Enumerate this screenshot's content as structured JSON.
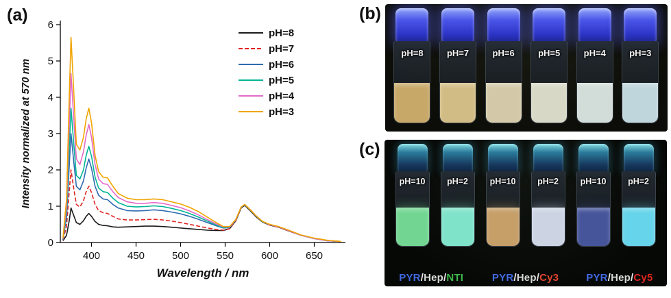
{
  "panels": {
    "a": {
      "label": "(a)"
    },
    "b": {
      "label": "(b)"
    },
    "c": {
      "label": "(c)"
    }
  },
  "chart_data": {
    "type": "line",
    "title": "",
    "xlabel": "Wavelength / nm",
    "ylabel": "Intensity normalized at 570 nm",
    "xlim": [
      365,
      685
    ],
    "ylim": [
      0,
      6
    ],
    "x_ticks": [
      400,
      450,
      500,
      550,
      600,
      650
    ],
    "y_ticks": [
      0,
      1,
      2,
      3,
      4,
      5,
      6
    ],
    "grid": false,
    "legend_position": "top-right",
    "x": [
      368,
      372,
      375,
      377,
      380,
      383,
      387,
      391,
      394,
      397,
      400,
      404,
      408,
      413,
      418,
      424,
      430,
      440,
      450,
      460,
      470,
      480,
      490,
      500,
      510,
      520,
      530,
      540,
      548,
      555,
      562,
      568,
      572,
      578,
      585,
      592,
      600,
      610,
      620,
      635,
      650,
      665,
      680
    ],
    "series": [
      {
        "name": "pH=8",
        "color": "#1a1a1a",
        "linestyle": "solid",
        "values": [
          0.05,
          0.2,
          0.6,
          0.95,
          0.75,
          0.55,
          0.5,
          0.6,
          0.72,
          0.8,
          0.72,
          0.58,
          0.5,
          0.47,
          0.46,
          0.43,
          0.42,
          0.43,
          0.44,
          0.45,
          0.45,
          0.44,
          0.42,
          0.4,
          0.38,
          0.36,
          0.34,
          0.33,
          0.33,
          0.38,
          0.6,
          0.95,
          1.02,
          0.88,
          0.7,
          0.56,
          0.48,
          0.42,
          0.33,
          0.2,
          0.11,
          0.05,
          0.03
        ]
      },
      {
        "name": "pH=7",
        "color": "#e02421",
        "linestyle": "dashed",
        "values": [
          0.07,
          0.45,
          1.4,
          2.0,
          1.5,
          1.05,
          0.98,
          1.15,
          1.4,
          1.55,
          1.38,
          1.05,
          0.88,
          0.82,
          0.8,
          0.72,
          0.65,
          0.62,
          0.62,
          0.63,
          0.64,
          0.62,
          0.59,
          0.55,
          0.5,
          0.45,
          0.4,
          0.36,
          0.34,
          0.38,
          0.6,
          0.96,
          1.03,
          0.89,
          0.71,
          0.57,
          0.48,
          0.42,
          0.33,
          0.2,
          0.11,
          0.05,
          0.03
        ]
      },
      {
        "name": "pH=6",
        "color": "#2e6bb0",
        "linestyle": "solid",
        "values": [
          0.08,
          0.7,
          2.1,
          3.0,
          2.25,
          1.55,
          1.45,
          1.7,
          2.05,
          2.3,
          2.05,
          1.55,
          1.3,
          1.2,
          1.18,
          1.05,
          0.95,
          0.88,
          0.87,
          0.88,
          0.9,
          0.88,
          0.84,
          0.79,
          0.72,
          0.64,
          0.55,
          0.46,
          0.4,
          0.41,
          0.62,
          0.97,
          1.04,
          0.9,
          0.72,
          0.57,
          0.49,
          0.43,
          0.34,
          0.2,
          0.11,
          0.05,
          0.03
        ]
      },
      {
        "name": "pH=5",
        "color": "#00b596",
        "linestyle": "solid",
        "values": [
          0.09,
          0.85,
          2.6,
          3.7,
          2.75,
          1.85,
          1.75,
          2.0,
          2.4,
          2.65,
          2.38,
          1.8,
          1.5,
          1.4,
          1.38,
          1.22,
          1.1,
          1.0,
          0.98,
          0.99,
          1.01,
          0.99,
          0.94,
          0.88,
          0.8,
          0.7,
          0.59,
          0.48,
          0.41,
          0.42,
          0.63,
          0.97,
          1.04,
          0.9,
          0.72,
          0.57,
          0.49,
          0.43,
          0.34,
          0.2,
          0.11,
          0.05,
          0.03
        ]
      },
      {
        "name": "pH=4",
        "color": "#e46ac8",
        "linestyle": "solid",
        "values": [
          0.1,
          1.0,
          3.2,
          4.65,
          3.45,
          2.3,
          2.15,
          2.5,
          2.95,
          3.25,
          2.9,
          2.15,
          1.75,
          1.62,
          1.6,
          1.4,
          1.24,
          1.12,
          1.08,
          1.08,
          1.1,
          1.08,
          1.02,
          0.96,
          0.87,
          0.76,
          0.63,
          0.51,
          0.43,
          0.43,
          0.63,
          0.98,
          1.05,
          0.91,
          0.73,
          0.58,
          0.49,
          0.43,
          0.34,
          0.2,
          0.11,
          0.05,
          0.03
        ]
      },
      {
        "name": "pH=3",
        "color": "#f0a500",
        "linestyle": "solid",
        "values": [
          0.12,
          1.2,
          4.0,
          5.65,
          4.2,
          2.7,
          2.55,
          2.9,
          3.4,
          3.7,
          3.3,
          2.4,
          1.95,
          1.8,
          1.78,
          1.55,
          1.35,
          1.22,
          1.18,
          1.18,
          1.2,
          1.18,
          1.12,
          1.06,
          0.97,
          0.85,
          0.7,
          0.55,
          0.44,
          0.44,
          0.64,
          0.98,
          1.05,
          0.91,
          0.73,
          0.58,
          0.5,
          0.44,
          0.35,
          0.21,
          0.12,
          0.06,
          0.03
        ]
      }
    ]
  },
  "panel_b": {
    "vials": [
      {
        "label": "pH=8",
        "liquid": "#c7a869"
      },
      {
        "label": "pH=7",
        "liquid": "#d2bc85"
      },
      {
        "label": "pH=6",
        "liquid": "#d3c9a8"
      },
      {
        "label": "pH=5",
        "liquid": "#d7d8c6"
      },
      {
        "label": "pH=4",
        "liquid": "#d2dcd8"
      },
      {
        "label": "pH=3",
        "liquid": "#bfd6dc"
      }
    ]
  },
  "panel_c": {
    "vials": [
      {
        "label": "pH=10",
        "liquid": "#72d692"
      },
      {
        "label": "pH=2",
        "liquid": "#7fe3c9"
      },
      {
        "label": "pH=10",
        "liquid": "#c59e68"
      },
      {
        "label": "pH=2",
        "liquid": "#ccd4e4"
      },
      {
        "label": "pH=10",
        "liquid": "#46549a"
      },
      {
        "label": "pH=2",
        "liquid": "#66d4ea"
      }
    ],
    "captions": [
      {
        "parts": [
          {
            "text": "PYR",
            "color": "#4169e1"
          },
          {
            "text": "/",
            "color": "#e8e8e8"
          },
          {
            "text": "Hep",
            "color": "#d8d8d8"
          },
          {
            "text": "/",
            "color": "#e8e8e8"
          },
          {
            "text": "NTI",
            "color": "#3dbb4a"
          }
        ]
      },
      {
        "parts": [
          {
            "text": "PYR",
            "color": "#4169e1"
          },
          {
            "text": "/",
            "color": "#e8e8e8"
          },
          {
            "text": "Hep",
            "color": "#d8d8d8"
          },
          {
            "text": "/",
            "color": "#e8e8e8"
          },
          {
            "text": "Cy3",
            "color": "#e2452e"
          }
        ]
      },
      {
        "parts": [
          {
            "text": "PYR",
            "color": "#4169e1"
          },
          {
            "text": "/",
            "color": "#e8e8e8"
          },
          {
            "text": "Hep",
            "color": "#d8d8d8"
          },
          {
            "text": "/",
            "color": "#e8e8e8"
          },
          {
            "text": "Cy5",
            "color": "#e0261f"
          }
        ]
      }
    ]
  }
}
